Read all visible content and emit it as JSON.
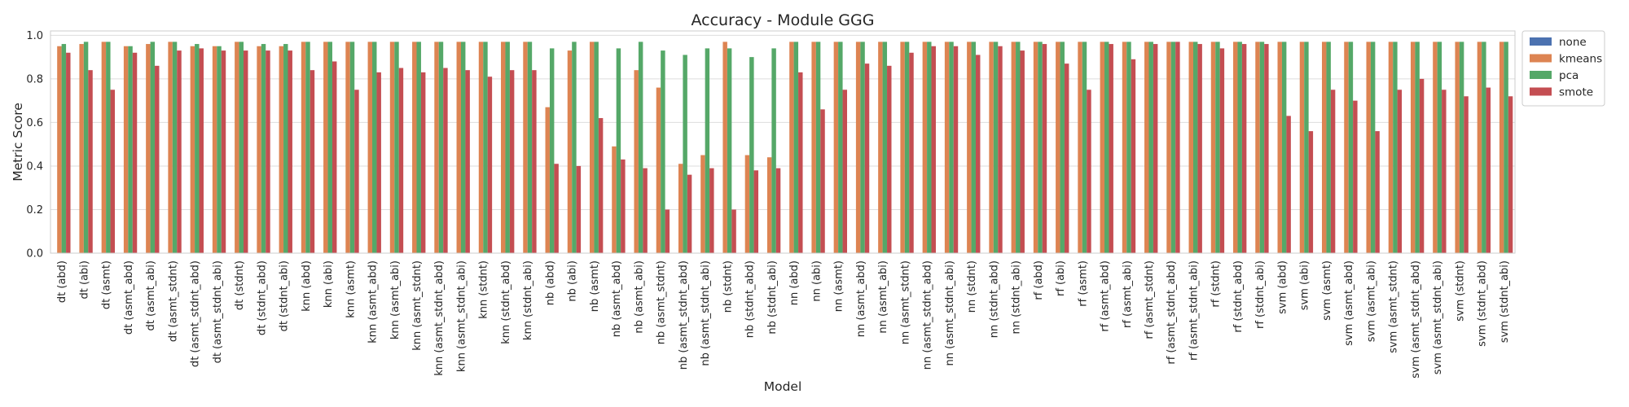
{
  "chart_data": {
    "type": "bar",
    "title": "Accuracy - Module GGG",
    "xlabel": "Model",
    "ylabel": "Metric Score",
    "ylim": [
      0,
      1.02
    ],
    "yticks": [
      "0.0",
      "0.2",
      "0.4",
      "0.6",
      "0.8",
      "1.0"
    ],
    "grid": true,
    "legend_position": "outside-right",
    "categories": [
      "dt (abd)",
      "dt (abi)",
      "dt (asmt)",
      "dt (asmt_abd)",
      "dt (asmt_abi)",
      "dt (asmt_stdnt)",
      "dt (asmt_stdnt_abd)",
      "dt (asmt_stdnt_abi)",
      "dt (stdnt)",
      "dt (stdnt_abd)",
      "dt (stdnt_abi)",
      "knn (abd)",
      "knn (abi)",
      "knn (asmt)",
      "knn (asmt_abd)",
      "knn (asmt_abi)",
      "knn (asmt_stdnt)",
      "knn (asmt_stdnt_abd)",
      "knn (asmt_stdnt_abi)",
      "knn (stdnt)",
      "knn (stdnt_abd)",
      "knn (stdnt_abi)",
      "nb (abd)",
      "nb (abi)",
      "nb (asmt)",
      "nb (asmt_abd)",
      "nb (asmt_abi)",
      "nb (asmt_stdnt)",
      "nb (asmt_stdnt_abd)",
      "nb (asmt_stdnt_abi)",
      "nb (stdnt)",
      "nb (stdnt_abd)",
      "nb (stdnt_abi)",
      "nn (abd)",
      "nn (abi)",
      "nn (asmt)",
      "nn (asmt_abd)",
      "nn (asmt_abi)",
      "nn (asmt_stdnt)",
      "nn (asmt_stdnt_abd)",
      "nn (asmt_stdnt_abi)",
      "nn (stdnt)",
      "nn (stdnt_abd)",
      "nn (stdnt_abi)",
      "rf (abd)",
      "rf (abi)",
      "rf (asmt)",
      "rf (asmt_abd)",
      "rf (asmt_abi)",
      "rf (asmt_stdnt)",
      "rf (asmt_stdnt_abd)",
      "rf (asmt_stdnt_abi)",
      "rf (stdnt)",
      "rf (stdnt_abd)",
      "rf (stdnt_abi)",
      "svm (abd)",
      "svm (abi)",
      "svm (asmt)",
      "svm (asmt_abd)",
      "svm (asmt_abi)",
      "svm (asmt_stdnt)",
      "svm (asmt_stdnt_abd)",
      "svm (asmt_stdnt_abi)",
      "svm (stdnt)",
      "svm (stdnt_abd)",
      "svm (stdnt_abi)"
    ],
    "series": [
      {
        "name": "none",
        "color": "#4c72b0",
        "values": [
          0,
          0,
          0,
          0,
          0,
          0,
          0,
          0,
          0,
          0,
          0,
          0,
          0,
          0,
          0,
          0,
          0,
          0,
          0,
          0,
          0,
          0,
          0,
          0,
          0,
          0,
          0,
          0,
          0,
          0,
          0,
          0,
          0,
          0,
          0,
          0,
          0,
          0,
          0,
          0,
          0,
          0,
          0,
          0,
          0,
          0,
          0,
          0,
          0,
          0,
          0,
          0,
          0,
          0,
          0,
          0,
          0,
          0,
          0,
          0,
          0,
          0,
          0,
          0,
          0,
          0
        ]
      },
      {
        "name": "kmeans",
        "color": "#dd8452",
        "values": [
          0.95,
          0.96,
          0.97,
          0.95,
          0.96,
          0.97,
          0.95,
          0.95,
          0.97,
          0.95,
          0.95,
          0.97,
          0.97,
          0.97,
          0.97,
          0.97,
          0.97,
          0.97,
          0.97,
          0.97,
          0.97,
          0.97,
          0.67,
          0.93,
          0.97,
          0.49,
          0.84,
          0.76,
          0.41,
          0.45,
          0.97,
          0.45,
          0.44,
          0.97,
          0.97,
          0.97,
          0.97,
          0.97,
          0.97,
          0.97,
          0.97,
          0.97,
          0.97,
          0.97,
          0.97,
          0.97,
          0.97,
          0.97,
          0.97,
          0.97,
          0.97,
          0.97,
          0.97,
          0.97,
          0.97,
          0.97,
          0.97,
          0.97,
          0.97,
          0.97,
          0.97,
          0.97,
          0.97,
          0.97,
          0.97,
          0.97
        ]
      },
      {
        "name": "pca",
        "color": "#55a868",
        "values": [
          0.96,
          0.97,
          0.97,
          0.95,
          0.97,
          0.97,
          0.96,
          0.95,
          0.97,
          0.96,
          0.96,
          0.97,
          0.97,
          0.97,
          0.97,
          0.97,
          0.97,
          0.97,
          0.97,
          0.97,
          0.97,
          0.97,
          0.94,
          0.97,
          0.97,
          0.94,
          0.97,
          0.93,
          0.91,
          0.94,
          0.94,
          0.9,
          0.94,
          0.97,
          0.97,
          0.97,
          0.97,
          0.97,
          0.97,
          0.97,
          0.97,
          0.97,
          0.97,
          0.97,
          0.97,
          0.97,
          0.97,
          0.97,
          0.97,
          0.97,
          0.97,
          0.97,
          0.97,
          0.97,
          0.97,
          0.97,
          0.97,
          0.97,
          0.97,
          0.97,
          0.97,
          0.97,
          0.97,
          0.97,
          0.97,
          0.97
        ]
      },
      {
        "name": "smote",
        "color": "#c44e52",
        "values": [
          0.92,
          0.84,
          0.75,
          0.92,
          0.86,
          0.93,
          0.94,
          0.93,
          0.93,
          0.93,
          0.93,
          0.84,
          0.88,
          0.75,
          0.83,
          0.85,
          0.83,
          0.85,
          0.84,
          0.81,
          0.84,
          0.84,
          0.41,
          0.4,
          0.62,
          0.43,
          0.39,
          0.2,
          0.36,
          0.39,
          0.2,
          0.38,
          0.39,
          0.83,
          0.66,
          0.75,
          0.87,
          0.86,
          0.92,
          0.95,
          0.95,
          0.91,
          0.95,
          0.93,
          0.96,
          0.87,
          0.75,
          0.96,
          0.89,
          0.96,
          0.97,
          0.96,
          0.94,
          0.96,
          0.96,
          0.63,
          0.56,
          0.75,
          0.7,
          0.56,
          0.75,
          0.8,
          0.75,
          0.72,
          0.76,
          0.72
        ]
      }
    ]
  }
}
